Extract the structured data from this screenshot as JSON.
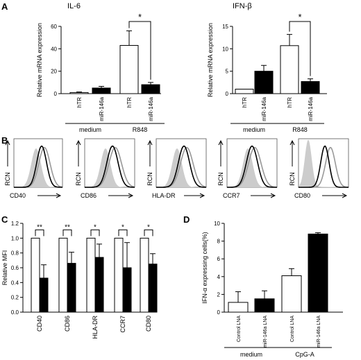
{
  "panel_labels": {
    "A": "A",
    "B": "B",
    "C": "C",
    "D": "D"
  },
  "chart_data": [
    {
      "id": "A1",
      "type": "bar",
      "title": "IL-6",
      "ylabel": "Relative mRNA expression",
      "ylim": [
        0,
        60
      ],
      "yticks": [
        "0",
        "20",
        "40",
        "60"
      ],
      "categories": [
        "hTR",
        "miR-146a",
        "hTR",
        "miR-146a"
      ],
      "values": [
        1,
        5,
        43,
        8
      ],
      "errors": [
        0.5,
        1.5,
        13,
        2
      ],
      "fills": [
        "white",
        "black",
        "white",
        "black"
      ],
      "groups": [
        "medium",
        "R848"
      ],
      "significance": "*"
    },
    {
      "id": "A2",
      "type": "bar",
      "title": "IFN-β",
      "ylabel": "Relative mRNA expression",
      "ylim": [
        0,
        15
      ],
      "yticks": [
        "0",
        "5",
        "10",
        "15"
      ],
      "categories": [
        "hTR",
        "miR-146a",
        "hTR",
        "miR-146a"
      ],
      "values": [
        1,
        5,
        10.7,
        2.7
      ],
      "errors": [
        0,
        1.3,
        2.5,
        0.6
      ],
      "fills": [
        "white",
        "black",
        "white",
        "black"
      ],
      "groups": [
        "medium",
        "R848"
      ],
      "significance": "*"
    },
    {
      "id": "B",
      "type": "line",
      "ylabel": "RCN",
      "markers": [
        "CD40",
        "CD86",
        "HLA-DR",
        "CCR7",
        "CD80"
      ]
    },
    {
      "id": "C",
      "type": "bar",
      "ylabel": "Relative MFI",
      "ylim": [
        0,
        1.2
      ],
      "yticks": [
        "0.0",
        "0.2",
        "0.4",
        "0.6",
        "0.8",
        "1.0",
        "1.2"
      ],
      "categories": [
        "CD40",
        "CD86",
        "HLA-DR",
        "CCR7",
        "CD80"
      ],
      "series": [
        {
          "values": [
            1,
            1,
            1,
            1,
            1
          ],
          "errors": [
            0,
            0,
            0,
            0,
            0
          ],
          "fill": "white"
        },
        {
          "values": [
            0.46,
            0.66,
            0.74,
            0.6,
            0.65
          ],
          "errors": [
            0.18,
            0.15,
            0.18,
            0.34,
            0.14
          ],
          "fill": "black"
        }
      ],
      "significance": [
        "**",
        "**",
        "*",
        "*",
        "*"
      ]
    },
    {
      "id": "D",
      "type": "bar",
      "ylabel": "IFN-α expressing cells(%)",
      "ylim": [
        0,
        10
      ],
      "yticks": [
        "0",
        "2",
        "4",
        "6",
        "8",
        "10"
      ],
      "categories": [
        "Control LNA",
        "miR-146a LNA",
        "Control LNA",
        "miR-146a LNA"
      ],
      "values": [
        1.1,
        1.5,
        4.1,
        8.8
      ],
      "errors": [
        1.2,
        0.9,
        0.8,
        0.15
      ],
      "fills": [
        "white",
        "black",
        "white",
        "black"
      ],
      "groups": [
        "medium",
        "CpG-A"
      ]
    }
  ]
}
